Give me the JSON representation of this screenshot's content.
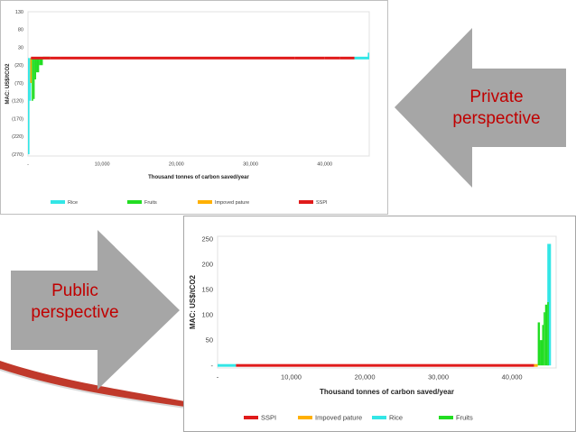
{
  "slide": {
    "private_label_line1": "Private",
    "private_label_line2": "perspective",
    "public_label_line1": "Public",
    "public_label_line2": "perspective",
    "arrow_color": "#a6a6a6",
    "label_color": "#c00000",
    "curve_color": "#c0392b"
  },
  "chart_data": [
    {
      "type": "bar",
      "subtype": "marginal-abatement-cost-curve",
      "title": "",
      "xlabel": "Thousand tonnes of carbon saved/year",
      "ylabel": "MAC: US$/tCO2",
      "xlim": [
        0,
        46000
      ],
      "ylim": [
        -275,
        130
      ],
      "x_ticks": [
        "-",
        "10,000",
        "20,000",
        "30,000",
        "40,000"
      ],
      "x_tick_values": [
        0,
        10000,
        20000,
        30000,
        40000
      ],
      "y_ticks": [
        "130",
        "80",
        "30",
        "(20)",
        "(70)",
        "(120)",
        "(170)",
        "(220)",
        "(270)"
      ],
      "y_tick_values": [
        130,
        80,
        30,
        -20,
        -70,
        -120,
        -170,
        -220,
        -270
      ],
      "grid": false,
      "legend": "bottom",
      "legend_entries": [
        {
          "name": "Rice",
          "color": "#33e6e6"
        },
        {
          "name": "Fruits",
          "color": "#22dd22"
        },
        {
          "name": "Impoved pature",
          "color": "#ffb000"
        },
        {
          "name": "SSPI",
          "color": "#e01b1b"
        }
      ],
      "series": [
        {
          "name": "Rice",
          "steps": [
            [
              0,
              200,
              -270
            ],
            [
              200,
              400,
              -120
            ],
            [
              44000,
              46000,
              0
            ],
            [
              45800,
              46000,
              15
            ]
          ]
        },
        {
          "name": "Fruits",
          "steps": [
            [
              500,
              700,
              -120
            ],
            [
              700,
              900,
              -115
            ],
            [
              900,
              1100,
              -60
            ],
            [
              1100,
              1500,
              -40
            ],
            [
              1500,
              2000,
              -20
            ],
            [
              2000,
              2500,
              -5
            ],
            [
              2500,
              3000,
              -3
            ]
          ]
        },
        {
          "name": "Impoved pature",
          "steps": [
            [
              300,
              500,
              -70
            ]
          ]
        },
        {
          "name": "SSPI",
          "steps": [
            [
              400,
              3000,
              2
            ],
            [
              3000,
              4500,
              0
            ],
            [
              4500,
              36000,
              0
            ],
            [
              36000,
              40000,
              0
            ],
            [
              40000,
              42000,
              2
            ],
            [
              42000,
              44000,
              3
            ]
          ]
        }
      ]
    },
    {
      "type": "bar",
      "subtype": "marginal-abatement-cost-curve",
      "title": "",
      "xlabel": "Thousand tonnes of carbon saved/year",
      "ylabel": "MAC: US$/tCO2",
      "xlim": [
        0,
        46000
      ],
      "ylim": [
        -5,
        255
      ],
      "x_ticks": [
        "-",
        "10,000",
        "20,000",
        "30,000",
        "40,000"
      ],
      "x_tick_values": [
        0,
        10000,
        20000,
        30000,
        40000
      ],
      "y_ticks": [
        "-",
        "50",
        "100",
        "150",
        "200",
        "250"
      ],
      "y_tick_values": [
        0,
        50,
        100,
        150,
        200,
        250
      ],
      "grid": false,
      "legend": "bottom",
      "legend_entries": [
        {
          "name": "SSPI",
          "color": "#e01b1b"
        },
        {
          "name": "Impoved pature",
          "color": "#ffb000"
        },
        {
          "name": "Rice",
          "color": "#33e6e6"
        },
        {
          "name": "Fruits",
          "color": "#22dd22"
        }
      ],
      "series": [
        {
          "name": "Rice",
          "steps": [
            [
              0,
              2500,
              0
            ],
            [
              44800,
              45300,
              240
            ]
          ]
        },
        {
          "name": "SSPI",
          "steps": [
            [
              2500,
              43000,
              0
            ]
          ]
        },
        {
          "name": "Impoved pature",
          "steps": [
            [
              43000,
              43500,
              2
            ]
          ]
        },
        {
          "name": "Fruits",
          "steps": [
            [
              43500,
              43800,
              85
            ],
            [
              43800,
              44100,
              50
            ],
            [
              44100,
              44300,
              80
            ],
            [
              44300,
              44500,
              105
            ],
            [
              44500,
              44800,
              120
            ],
            [
              44800,
              45000,
              125
            ]
          ]
        }
      ]
    }
  ]
}
